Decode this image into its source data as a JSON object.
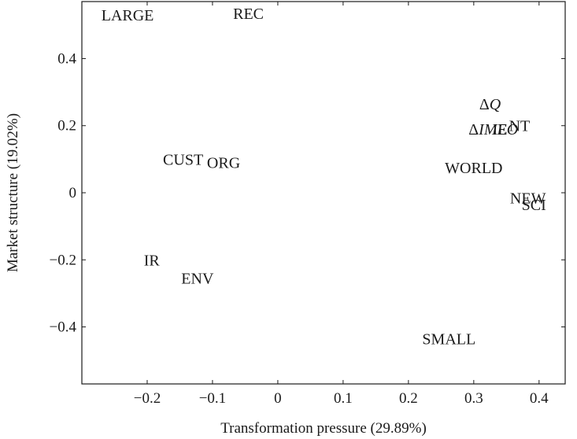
{
  "chart_data": {
    "type": "scatter",
    "xlabel": "Transformation pressure (29.89%)",
    "ylabel": "Market structure (19.02%)",
    "xlim": [
      -0.3,
      0.44
    ],
    "ylim": [
      -0.57,
      0.57
    ],
    "xticks": [
      -0.2,
      -0.1,
      0,
      0.1,
      0.2,
      0.3,
      0.4
    ],
    "yticks": [
      -0.4,
      -0.2,
      0,
      0.2,
      0.4
    ],
    "xtick_labels": [
      "−0.2",
      "−0.1",
      "0",
      "0.1",
      "0.2",
      "0.3",
      "0.4"
    ],
    "ytick_labels": [
      "−0.4",
      "−0.2",
      "0",
      "0.2",
      "0.4"
    ],
    "grid": false,
    "points": [
      {
        "label": "LARGE",
        "x": -0.23,
        "y": 0.53
      },
      {
        "label": "REC",
        "x": -0.045,
        "y": 0.535
      },
      {
        "label": "ΔQ",
        "x": 0.325,
        "y": 0.265
      },
      {
        "label": "NT",
        "x": 0.37,
        "y": 0.2
      },
      {
        "label": "ΔIMEO",
        "x": 0.33,
        "y": 0.19
      },
      {
        "label": "IE",
        "x": 0.34,
        "y": 0.19
      },
      {
        "label": "CUST",
        "x": -0.145,
        "y": 0.1
      },
      {
        "label": "ORG",
        "x": -0.083,
        "y": 0.09
      },
      {
        "label": "WORLD",
        "x": 0.3,
        "y": 0.075
      },
      {
        "label": "NEW",
        "x": 0.383,
        "y": -0.015
      },
      {
        "label": "SCI",
        "x": 0.392,
        "y": -0.035
      },
      {
        "label": "IR",
        "x": -0.193,
        "y": -0.2
      },
      {
        "label": "ENV",
        "x": -0.123,
        "y": -0.255
      },
      {
        "label": "SMALL",
        "x": 0.262,
        "y": -0.435
      }
    ]
  }
}
